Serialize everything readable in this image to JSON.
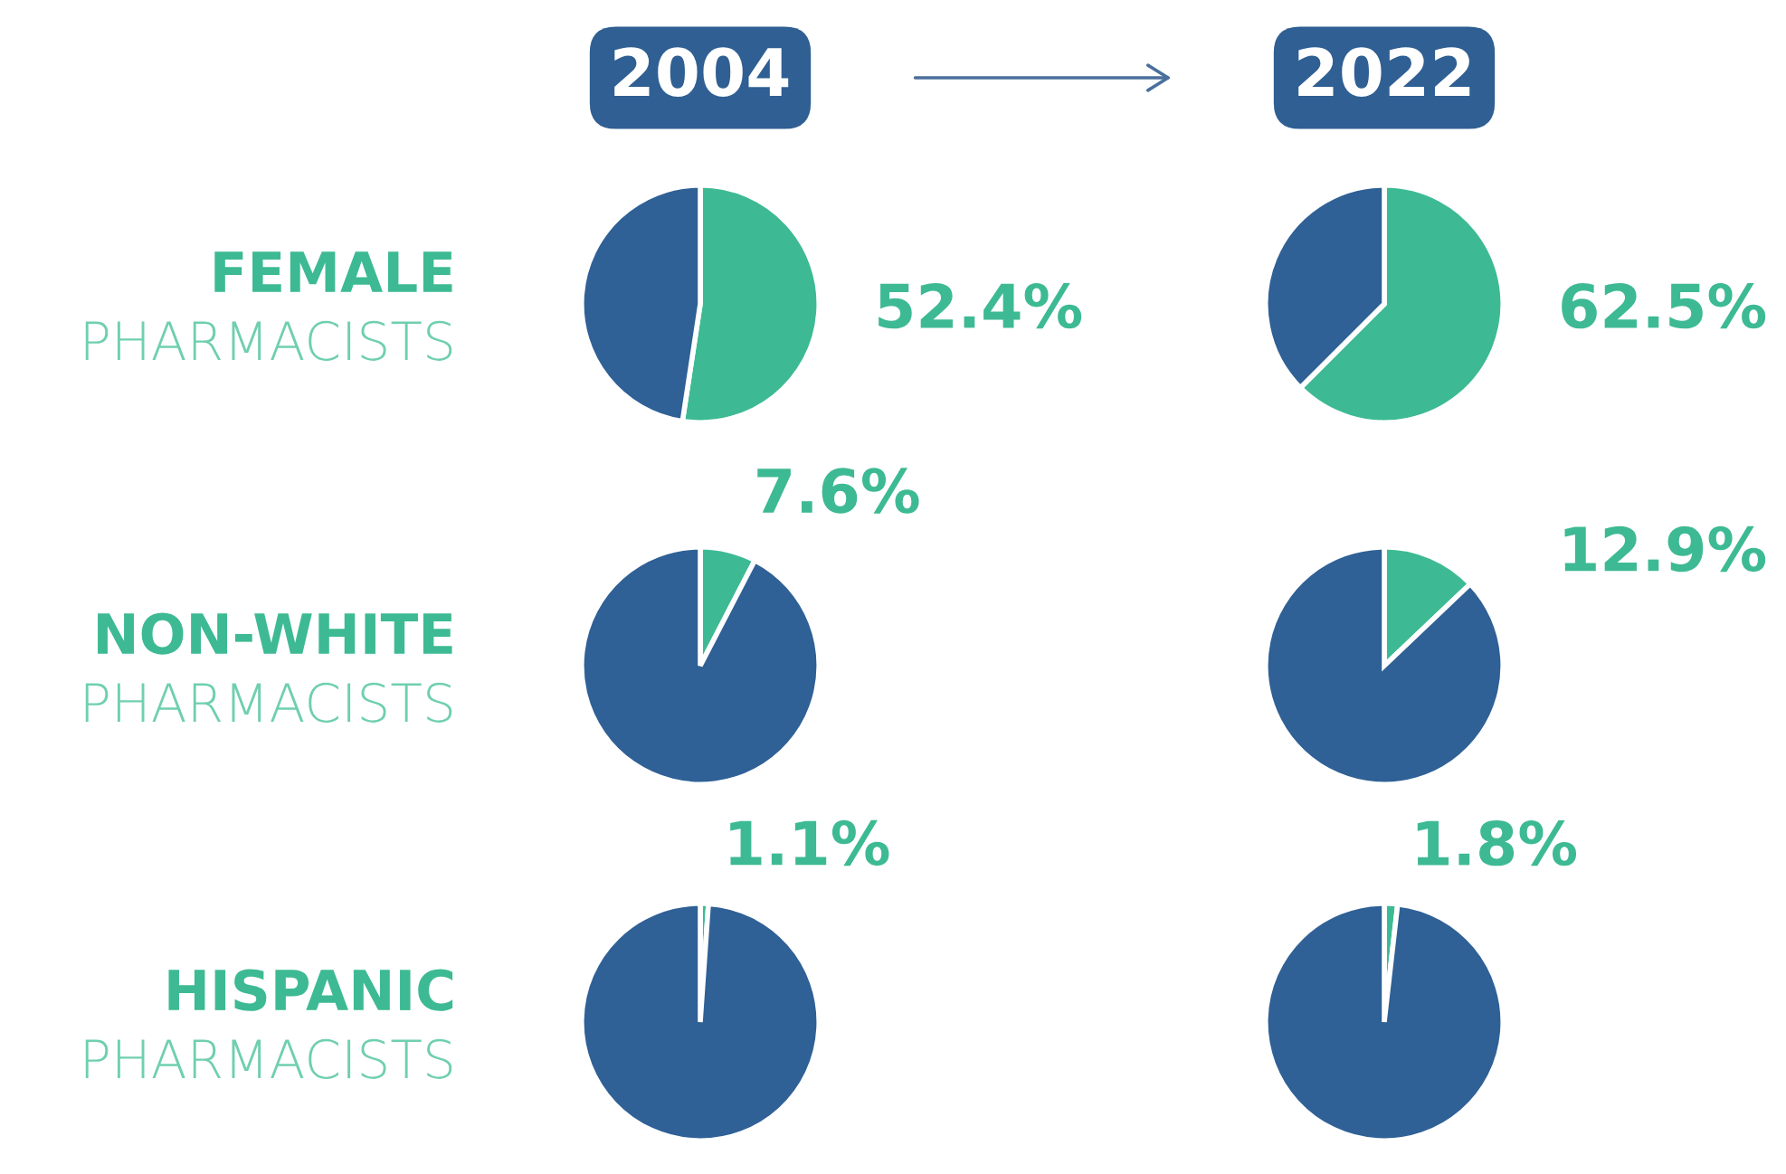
{
  "chart_data": [
    {
      "type": "pie",
      "title": "2004",
      "annotations": [
        "FEMALE",
        "PHARMACISTS"
      ],
      "categories": [
        null,
        null
      ],
      "values": [
        52.4,
        47.6
      ],
      "colors": [
        "#3dba93",
        "#2f6096"
      ],
      "value_labels": [
        "52.4%",
        null
      ]
    },
    {
      "type": "pie",
      "title": "2022",
      "categories": [
        null,
        null
      ],
      "values": [
        62.5,
        37.5
      ],
      "colors": [
        "#3dba93",
        "#2f6096"
      ],
      "value_labels": [
        "62.5%",
        null
      ]
    },
    {
      "type": "pie",
      "annotations": [
        "NON-WHITE",
        "PHARMACISTS"
      ],
      "categories": [
        null,
        null
      ],
      "values": [
        7.6,
        92.4
      ],
      "colors": [
        "#3dba93",
        "#2f6096"
      ],
      "value_labels": [
        "7.6%",
        null
      ]
    },
    {
      "type": "pie",
      "categories": [
        null,
        null
      ],
      "values": [
        12.9,
        87.1
      ],
      "colors": [
        "#3dba93",
        "#2f6096"
      ],
      "value_labels": [
        "12.9%",
        null
      ]
    },
    {
      "type": "pie",
      "annotations": [
        "HISPANIC",
        "PHARMACISTS"
      ],
      "categories": [
        null,
        null
      ],
      "values": [
        1.1,
        98.9
      ],
      "colors": [
        "#3dba93",
        "#2f6096"
      ],
      "value_labels": [
        "1.1%",
        null
      ]
    },
    {
      "type": "pie",
      "categories": [
        null,
        null
      ],
      "values": [
        1.8,
        98.2
      ],
      "colors": [
        "#3dba93",
        "#2f6096"
      ],
      "value_labels": [
        "1.8%",
        null
      ]
    }
  ]
}
